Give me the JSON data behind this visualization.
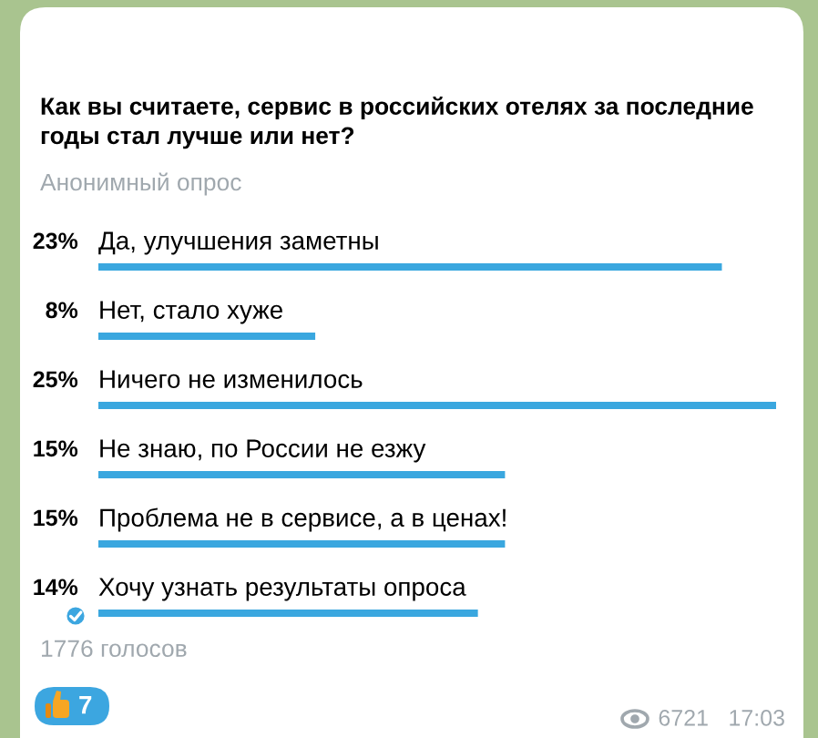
{
  "chart_data": {
    "type": "bar",
    "orientation": "horizontal",
    "title": "Как вы считаете, сервис в российских отелях за последние годы стал лучше или нет?",
    "subtitle": "Анонимный опрос",
    "categories": [
      "Да, улучшения заметны",
      "Нет, стало хуже",
      "Ничего не изменилось",
      "Не знаю, по России не езжу",
      "Проблема не в сервисе, а в ценах!",
      "Хочу узнать результаты опроса"
    ],
    "values": [
      23,
      8,
      25,
      15,
      15,
      14
    ],
    "value_labels": [
      "23%",
      "8%",
      "25%",
      "15%",
      "15%",
      "14%"
    ],
    "color": "#3aa7df",
    "tick_labels": "y",
    "annotations": [
      "1776 голосов",
      "7",
      "6721",
      "17:03"
    ]
  }
}
